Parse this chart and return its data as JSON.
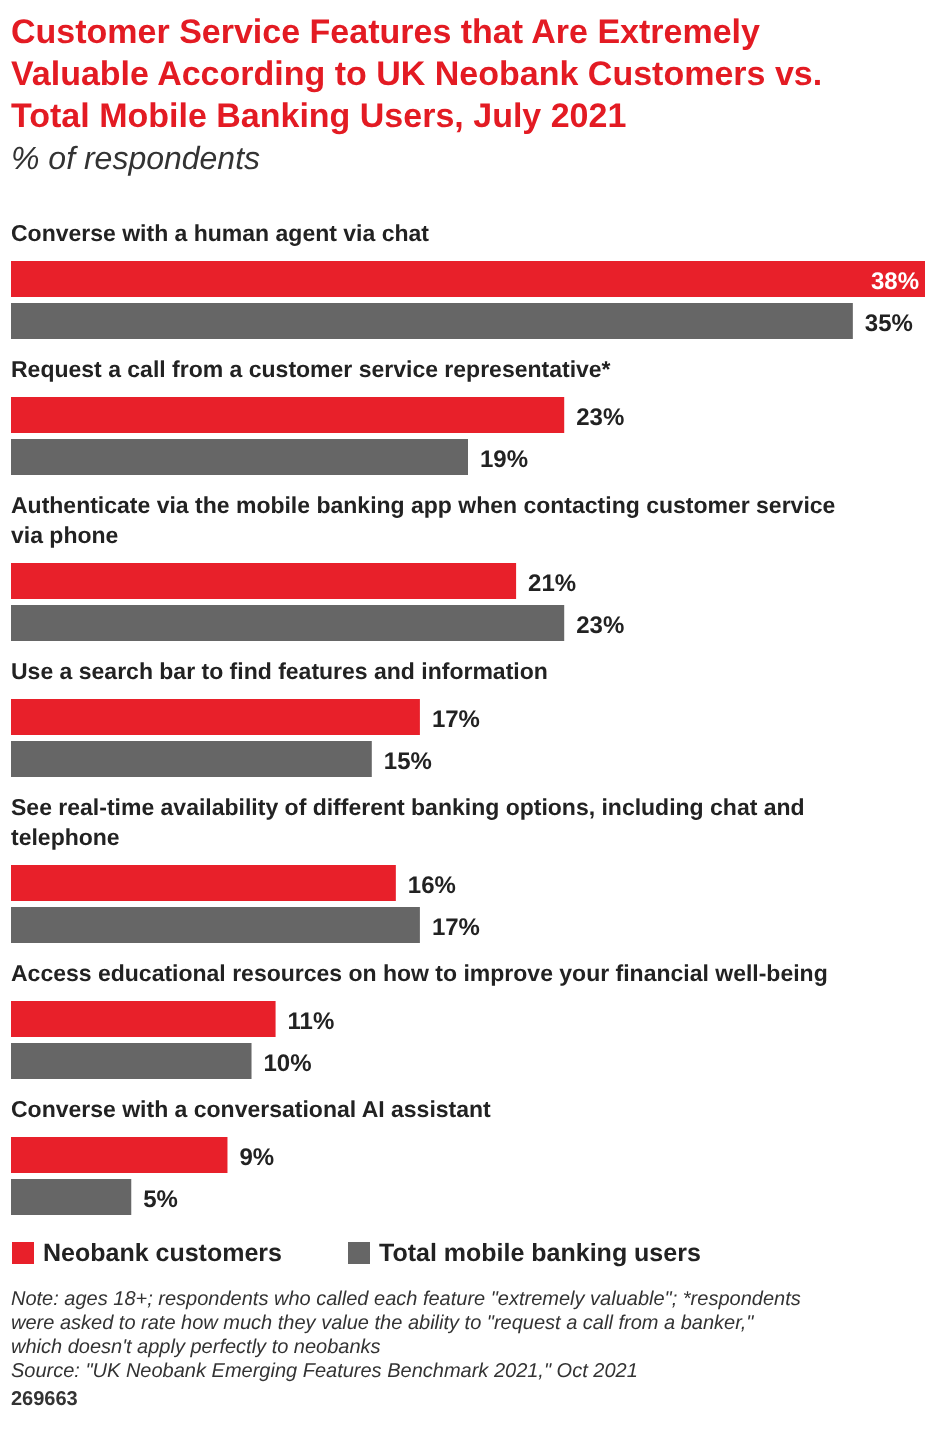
{
  "chart_data": {
    "type": "bar",
    "orientation": "horizontal",
    "title": "Customer Service Features that Are Extremely Valuable According to UK Neobank Customers vs. Total Mobile Banking Users, July 2021",
    "subtitle": "% of respondents",
    "categories": [
      "Converse with a human agent via chat",
      "Request a call from a customer service representative*",
      "Authenticate via the mobile banking app when contacting customer service via phone",
      "Use a search bar to find features and information",
      "See real-time availability of different banking options, including chat and telephone",
      "Access educational resources on how to improve your financial well-being",
      "Converse with a conversational AI assistant"
    ],
    "series": [
      {
        "name": "Neobank customers",
        "color": "#e8202a",
        "values": [
          38,
          23,
          21,
          17,
          16,
          11,
          9
        ],
        "value_labels": [
          "38%",
          "23%",
          "21%",
          "17%",
          "16%",
          "11%",
          "9%"
        ]
      },
      {
        "name": "Total mobile banking users",
        "color": "#666666",
        "values": [
          35,
          19,
          23,
          15,
          17,
          10,
          5
        ],
        "value_labels": [
          "35%",
          "19%",
          "23%",
          "15%",
          "17%",
          "10%",
          "5%"
        ]
      }
    ],
    "legend": "bottom",
    "annotations": [
      "Note: ages 18+; respondents who called each feature \"extremely valuable\"; *respondents were asked to rate how much they value the ability to \"request a call from a banker,\" which doesn't apply perfectly to neobanks",
      "Source: \"UK Neobank Emerging Features Benchmark 2021,\" Oct 2021",
      "269663"
    ]
  }
}
